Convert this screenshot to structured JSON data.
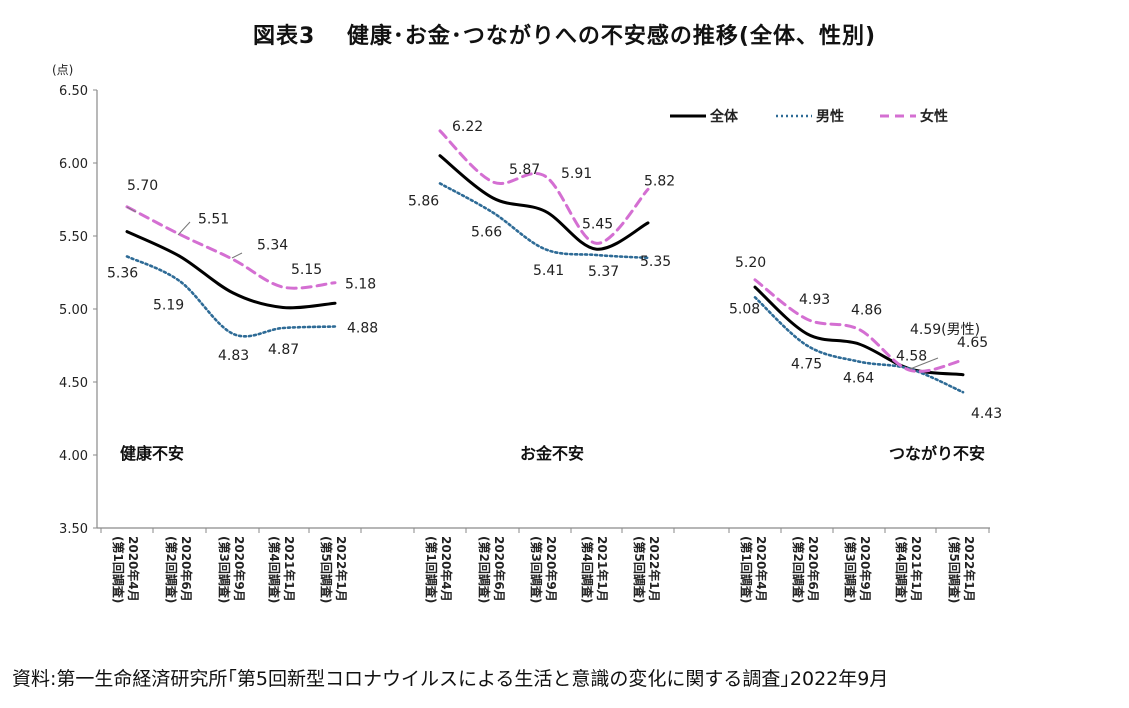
{
  "chart_data": {
    "type": "line",
    "title": "図表3　 健康･お金･つながりへの不安感の推移(全体、性別)",
    "ylabel": "(点)",
    "ylim": [
      3.5,
      6.5
    ],
    "yticks": [
      "3.50",
      "4.00",
      "4.50",
      "5.00",
      "5.50",
      "6.00",
      "6.50"
    ],
    "legend": {
      "position": "top-right",
      "entries": [
        "全体",
        "男性",
        "女性"
      ]
    },
    "survey_labels": [
      "(第1回調査)",
      "(第2回調査)",
      "(第3回調査)",
      "(第4回調査)",
      "(第5回調査)"
    ],
    "date_labels": [
      "2020年4月",
      "2020年6月",
      "2020年9月",
      "2021年1月",
      "2022年1月"
    ],
    "panels": [
      {
        "name": "健康不安",
        "series": [
          {
            "name": "全体",
            "values": [
              5.53,
              5.36,
              5.11,
              5.01,
              5.04
            ]
          },
          {
            "name": "男性",
            "values": [
              5.36,
              5.19,
              4.83,
              4.87,
              4.88
            ]
          },
          {
            "name": "女性",
            "values": [
              5.7,
              5.51,
              5.34,
              5.15,
              5.18
            ]
          }
        ]
      },
      {
        "name": "お金不安",
        "series": [
          {
            "name": "全体",
            "values": [
              6.05,
              5.76,
              5.67,
              5.41,
              5.59
            ]
          },
          {
            "name": "男性",
            "values": [
              5.86,
              5.66,
              5.41,
              5.37,
              5.35
            ]
          },
          {
            "name": "女性",
            "values": [
              6.22,
              5.87,
              5.91,
              5.45,
              5.82
            ]
          }
        ]
      },
      {
        "name": "つながり不安",
        "series": [
          {
            "name": "全体",
            "values": [
              5.15,
              4.83,
              4.76,
              4.59,
              4.55
            ]
          },
          {
            "name": "男性",
            "values": [
              5.08,
              4.75,
              4.64,
              4.59,
              4.43
            ]
          },
          {
            "name": "女性",
            "values": [
              5.2,
              4.93,
              4.86,
              4.58,
              4.65
            ]
          }
        ]
      }
    ],
    "data_labels": [
      {
        "panel": 0,
        "series": "女性",
        "index": 0,
        "text": "5.70"
      },
      {
        "panel": 0,
        "series": "女性",
        "index": 1,
        "text": "5.51"
      },
      {
        "panel": 0,
        "series": "女性",
        "index": 2,
        "text": "5.34"
      },
      {
        "panel": 0,
        "series": "女性",
        "index": 3,
        "text": "5.15"
      },
      {
        "panel": 0,
        "series": "女性",
        "index": 4,
        "text": "5.18"
      },
      {
        "panel": 0,
        "series": "男性",
        "index": 0,
        "text": "5.36"
      },
      {
        "panel": 0,
        "series": "男性",
        "index": 1,
        "text": "5.19"
      },
      {
        "panel": 0,
        "series": "男性",
        "index": 2,
        "text": "4.83"
      },
      {
        "panel": 0,
        "series": "男性",
        "index": 3,
        "text": "4.87"
      },
      {
        "panel": 0,
        "series": "男性",
        "index": 4,
        "text": "4.88"
      },
      {
        "panel": 1,
        "series": "女性",
        "index": 0,
        "text": "6.22"
      },
      {
        "panel": 1,
        "series": "女性",
        "index": 1,
        "text": "5.87"
      },
      {
        "panel": 1,
        "series": "女性",
        "index": 2,
        "text": "5.91"
      },
      {
        "panel": 1,
        "series": "女性",
        "index": 3,
        "text": "5.45"
      },
      {
        "panel": 1,
        "series": "女性",
        "index": 4,
        "text": "5.82"
      },
      {
        "panel": 1,
        "series": "男性",
        "index": 0,
        "text": "5.86"
      },
      {
        "panel": 1,
        "series": "男性",
        "index": 1,
        "text": "5.66"
      },
      {
        "panel": 1,
        "series": "男性",
        "index": 2,
        "text": "5.41"
      },
      {
        "panel": 1,
        "series": "男性",
        "index": 3,
        "text": "5.37"
      },
      {
        "panel": 1,
        "series": "男性",
        "index": 4,
        "text": "5.35"
      },
      {
        "panel": 2,
        "series": "女性",
        "index": 0,
        "text": "5.20"
      },
      {
        "panel": 2,
        "series": "女性",
        "index": 1,
        "text": "4.93"
      },
      {
        "panel": 2,
        "series": "女性",
        "index": 2,
        "text": "4.86"
      },
      {
        "panel": 2,
        "series": "女性",
        "index": 3,
        "text": "4.58"
      },
      {
        "panel": 2,
        "series": "女性",
        "index": 4,
        "text": "4.65"
      },
      {
        "panel": 2,
        "series": "男性",
        "index": 0,
        "text": "5.08"
      },
      {
        "panel": 2,
        "series": "男性",
        "index": 1,
        "text": "4.75"
      },
      {
        "panel": 2,
        "series": "男性",
        "index": 2,
        "text": "4.64"
      },
      {
        "panel": 2,
        "series": "男性",
        "index": 3,
        "text": "4.59(男性)"
      },
      {
        "panel": 2,
        "series": "男性",
        "index": 4,
        "text": "4.43"
      }
    ],
    "colors": {
      "全体": "#000000",
      "男性": "#2e6b96",
      "女性": "#d46fd2"
    },
    "source": "資料:第一生命経済研究所｢第5回新型コロナウイルスによる生活と意識の変化に関する調査｣2022年9月"
  }
}
